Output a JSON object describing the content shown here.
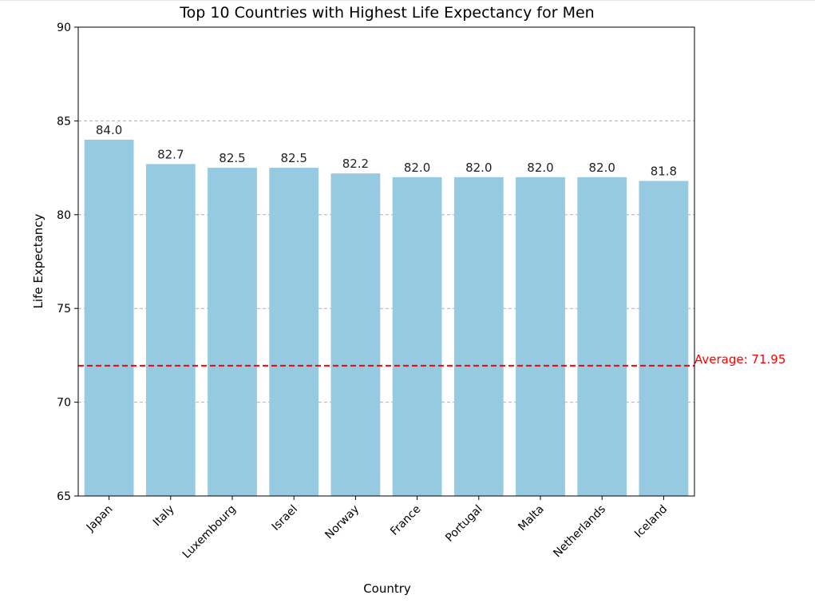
{
  "chart_data": {
    "type": "bar",
    "title": "Top 10 Countries with Highest Life Expectancy for Men",
    "xlabel": "Country",
    "ylabel": "Life Expectancy",
    "categories": [
      "Japan",
      "Italy",
      "Luxembourg",
      "Israel",
      "Norway",
      "France",
      "Portugal",
      "Malta",
      "Netherlands",
      "Iceland"
    ],
    "values": [
      84.0,
      82.7,
      82.5,
      82.5,
      82.2,
      82.0,
      82.0,
      82.0,
      82.0,
      81.8
    ],
    "value_labels": [
      "84.0",
      "82.7",
      "82.5",
      "82.5",
      "82.2",
      "82.0",
      "82.0",
      "82.0",
      "82.0",
      "81.8"
    ],
    "ylim": [
      65,
      90
    ],
    "yticks": [
      65,
      70,
      75,
      80,
      85,
      90
    ],
    "grid": "y-dashed",
    "bar_color": "#96cae0",
    "average": {
      "value": 71.95,
      "label": "Average: 71.95",
      "color": "#ff0000"
    }
  }
}
